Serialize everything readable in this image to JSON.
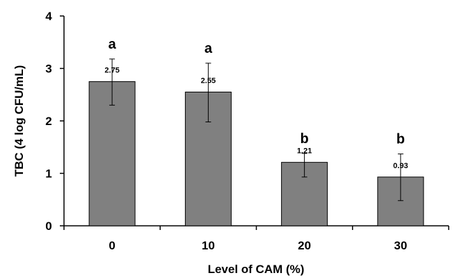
{
  "chart_data": {
    "type": "bar",
    "categories": [
      "0",
      "10",
      "20",
      "30"
    ],
    "values": [
      2.75,
      2.55,
      1.21,
      0.93
    ],
    "data_labels": [
      "2.75",
      "2.55",
      "1.21",
      "0.93"
    ],
    "error_low": [
      2.3,
      1.98,
      0.93,
      0.48
    ],
    "error_high": [
      3.18,
      3.1,
      1.38,
      1.37
    ],
    "significance": [
      "a",
      "a",
      "b",
      "b"
    ],
    "xlabel": "Level of CAM (%)",
    "ylabel": "TBC (4 log CFU/mL)",
    "ylim": [
      0,
      4
    ],
    "yticks": [
      "0",
      "1",
      "2",
      "3",
      "4"
    ],
    "bar_color": "#808080",
    "grid": false,
    "legend": "none"
  }
}
